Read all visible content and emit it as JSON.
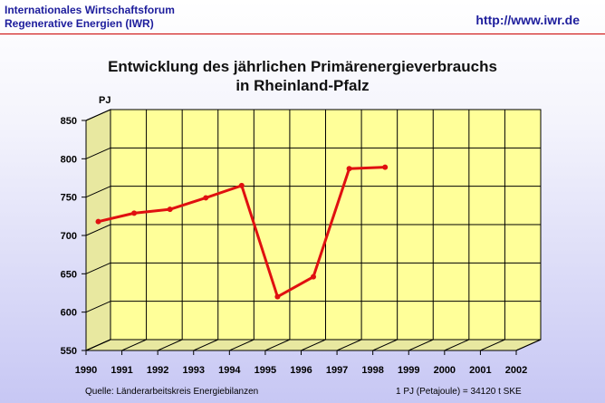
{
  "header": {
    "org_line1": "Internationales Wirtschaftsforum",
    "org_line2": "Regenerative Energien (IWR)",
    "url": "http://www.iwr.de"
  },
  "colors": {
    "header_text": "#1d1d9c",
    "header_rule": "#cc0000",
    "plot_face": "#ffff99",
    "plot_side": "#e8e8a0",
    "line": "#e01010"
  },
  "chart_data": {
    "type": "line",
    "title_line1": "Entwicklung des jährlichen Primärenergieverbrauchs",
    "title_line2": "in Rheinland-Pfalz",
    "ylabel": "PJ",
    "xlabel": "",
    "categories": [
      "1990",
      "1991",
      "1992",
      "1993",
      "1994",
      "1995",
      "1996",
      "1997",
      "1998",
      "1999",
      "2000",
      "2001",
      "2002"
    ],
    "yticks": [
      "850",
      "800",
      "750",
      "700",
      "650",
      "600",
      "550"
    ],
    "ylim": [
      550,
      850
    ],
    "grid": true,
    "series": [
      {
        "x": [
          "1990",
          "1991",
          "1992",
          "1993",
          "1994",
          "1995",
          "1996",
          "1997",
          "1998"
        ],
        "values": [
          711,
          722,
          727,
          742,
          758,
          613,
          639,
          780,
          782
        ]
      }
    ]
  },
  "footer": {
    "source": "Quelle: Länderarbeitskreis Energiebilanzen",
    "conversion": "1 PJ (Petajoule) = 34120 t SKE"
  }
}
